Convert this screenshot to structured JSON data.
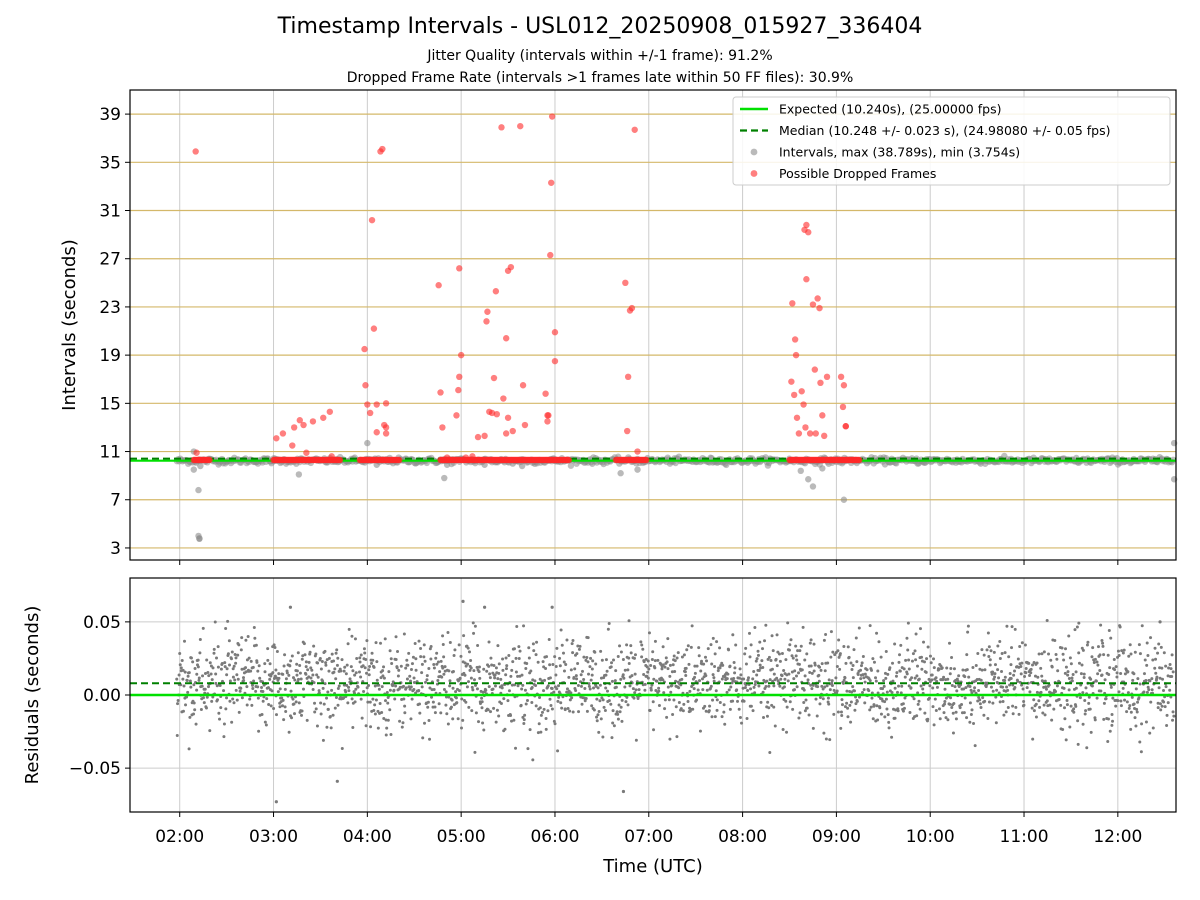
{
  "figure": {
    "title": "Timestamp Intervals - USL012_20250908_015927_336404",
    "subtitle_1": "Jitter Quality (intervals within +/-1 frame): 91.2%",
    "subtitle_2": "Dropped Frame Rate (intervals >1 frames late within 50 FF files): 30.9%"
  },
  "colors": {
    "expected": "#00e000",
    "median": "#008000",
    "intervals": "#8c8c8c",
    "dropped": "#ff2a2a",
    "hgrid": "#d4b86a",
    "vgrid": "#cccccc",
    "residuals": "#7a7a7a"
  },
  "chart_data": [
    {
      "type": "scatter",
      "title": "",
      "xlabel": "",
      "ylabel": "Intervals (seconds)",
      "xlim_hours": [
        1.47,
        12.62
      ],
      "ylim": [
        2.0,
        41.0
      ],
      "x_tick_labels": [
        "02:00",
        "03:00",
        "04:00",
        "05:00",
        "06:00",
        "07:00",
        "08:00",
        "09:00",
        "10:00",
        "11:00",
        "12:00"
      ],
      "x_tick_hours": [
        2,
        3,
        4,
        5,
        6,
        7,
        8,
        9,
        10,
        11,
        12
      ],
      "y_ticks": [
        3,
        7,
        11,
        15,
        19,
        23,
        27,
        31,
        35,
        39
      ],
      "grid": true,
      "legend_position": "top-right",
      "legend": [
        "Expected (10.240s), (25.00000 fps)",
        "Median (10.248 +/- 0.023 s), (24.98080 +/- 0.05 fps)",
        "Intervals, max (38.789s), min (3.754s)",
        "Possible Dropped Frames"
      ],
      "expected_interval": 10.24,
      "median_interval": 10.248,
      "dropped_band_hours": [
        [
          2.15,
          2.32
        ],
        [
          3.0,
          3.72
        ],
        [
          3.92,
          4.35
        ],
        [
          4.78,
          6.15
        ],
        [
          6.65,
          6.98
        ],
        [
          8.5,
          9.25
        ]
      ],
      "dropped_band_value": 10.3,
      "series": [
        {
          "name": "Possible Dropped Frames",
          "points": [
            [
              2.17,
              35.9
            ],
            [
              2.18,
              10.9
            ],
            [
              2.2,
              10.3
            ],
            [
              3.03,
              12.1
            ],
            [
              3.1,
              12.5
            ],
            [
              3.2,
              11.5
            ],
            [
              3.22,
              13.0
            ],
            [
              3.28,
              13.6
            ],
            [
              3.32,
              13.2
            ],
            [
              3.35,
              10.9
            ],
            [
              3.42,
              13.5
            ],
            [
              3.53,
              13.8
            ],
            [
              3.6,
              14.3
            ],
            [
              3.62,
              10.6
            ],
            [
              3.97,
              19.5
            ],
            [
              3.98,
              16.5
            ],
            [
              4.0,
              14.9
            ],
            [
              4.03,
              14.2
            ],
            [
              4.05,
              30.2
            ],
            [
              4.07,
              21.2
            ],
            [
              4.1,
              12.6
            ],
            [
              4.1,
              14.9
            ],
            [
              4.14,
              35.9
            ],
            [
              4.16,
              36.1
            ],
            [
              4.18,
              13.2
            ],
            [
              4.2,
              15.0
            ],
            [
              4.2,
              12.5
            ],
            [
              4.2,
              13.0
            ],
            [
              4.76,
              24.8
            ],
            [
              4.78,
              15.9
            ],
            [
              4.8,
              13.0
            ],
            [
              4.85,
              10.5
            ],
            [
              4.95,
              14.0
            ],
            [
              4.97,
              16.1
            ],
            [
              4.98,
              17.2
            ],
            [
              4.98,
              26.2
            ],
            [
              5.0,
              19.0
            ],
            [
              5.05,
              10.5
            ],
            [
              5.12,
              10.6
            ],
            [
              5.18,
              12.2
            ],
            [
              5.25,
              12.3
            ],
            [
              5.27,
              21.8
            ],
            [
              5.28,
              22.6
            ],
            [
              5.3,
              14.3
            ],
            [
              5.33,
              14.2
            ],
            [
              5.35,
              17.1
            ],
            [
              5.37,
              24.3
            ],
            [
              5.38,
              14.1
            ],
            [
              5.43,
              37.9
            ],
            [
              5.45,
              15.4
            ],
            [
              5.48,
              20.4
            ],
            [
              5.48,
              12.5
            ],
            [
              5.5,
              13.8
            ],
            [
              5.5,
              26.0
            ],
            [
              5.53,
              26.3
            ],
            [
              5.55,
              12.7
            ],
            [
              5.63,
              38.0
            ],
            [
              5.66,
              16.5
            ],
            [
              5.68,
              13.2
            ],
            [
              5.9,
              15.8
            ],
            [
              5.92,
              13.5
            ],
            [
              5.92,
              14.0
            ],
            [
              5.93,
              14.0
            ],
            [
              5.95,
              27.3
            ],
            [
              5.96,
              33.3
            ],
            [
              5.97,
              38.8
            ],
            [
              6.0,
              20.9
            ],
            [
              6.0,
              18.5
            ],
            [
              6.75,
              25.0
            ],
            [
              6.77,
              12.7
            ],
            [
              6.78,
              17.2
            ],
            [
              6.8,
              22.7
            ],
            [
              6.82,
              22.9
            ],
            [
              6.85,
              37.7
            ],
            [
              6.88,
              11.0
            ],
            [
              8.52,
              16.8
            ],
            [
              8.53,
              23.3
            ],
            [
              8.55,
              15.7
            ],
            [
              8.56,
              20.3
            ],
            [
              8.57,
              19.0
            ],
            [
              8.58,
              13.8
            ],
            [
              8.6,
              12.5
            ],
            [
              8.63,
              16.0
            ],
            [
              8.65,
              14.9
            ],
            [
              8.66,
              29.4
            ],
            [
              8.67,
              13.0
            ],
            [
              8.68,
              29.8
            ],
            [
              8.68,
              25.3
            ],
            [
              8.7,
              29.2
            ],
            [
              8.72,
              12.5
            ],
            [
              8.75,
              23.2
            ],
            [
              8.77,
              17.8
            ],
            [
              8.78,
              12.5
            ],
            [
              8.8,
              23.7
            ],
            [
              8.82,
              22.9
            ],
            [
              8.83,
              16.7
            ],
            [
              8.85,
              14.0
            ],
            [
              8.87,
              12.3
            ],
            [
              8.9,
              17.2
            ],
            [
              9.05,
              17.2
            ],
            [
              9.07,
              14.7
            ],
            [
              9.08,
              16.5
            ],
            [
              9.1,
              13.1
            ],
            [
              9.1,
              13.1
            ]
          ]
        },
        {
          "name": "Intervals, max (38.789s), min (3.754s)",
          "points": [
            [
              2.15,
              9.5
            ],
            [
              2.15,
              11.0
            ],
            [
              2.2,
              7.8
            ],
            [
              2.2,
              4.0
            ],
            [
              2.21,
              3.8
            ],
            [
              2.21,
              3.754
            ],
            [
              2.22,
              9.8
            ],
            [
              3.0,
              10.2
            ],
            [
              3.27,
              9.1
            ],
            [
              4.0,
              11.7
            ],
            [
              4.1,
              9.9
            ],
            [
              4.82,
              8.8
            ],
            [
              4.85,
              9.9
            ],
            [
              5.15,
              10.2
            ],
            [
              5.25,
              9.9
            ],
            [
              5.55,
              10.0
            ],
            [
              5.65,
              9.8
            ],
            [
              6.7,
              9.2
            ],
            [
              6.88,
              9.5
            ],
            [
              8.62,
              9.4
            ],
            [
              8.7,
              8.7
            ],
            [
              8.75,
              8.1
            ],
            [
              8.85,
              9.6
            ],
            [
              9.08,
              7.0
            ],
            [
              12.6,
              11.7
            ],
            [
              12.6,
              8.7
            ]
          ]
        }
      ]
    },
    {
      "type": "scatter",
      "title": "",
      "xlabel": "Time (UTC)",
      "ylabel": "Residuals (seconds)",
      "xlim_hours": [
        1.47,
        12.62
      ],
      "ylim": [
        -0.08,
        0.08
      ],
      "y_tick_labels": [
        "0.05",
        "0.00",
        "−0.05"
      ],
      "y_ticks": [
        0.05,
        0.0,
        -0.05
      ],
      "grid": true,
      "expected_residual": 0.0,
      "median_residual": 0.008,
      "residual_range": [
        -0.074,
        0.065
      ],
      "residual_spread_sd": 0.021,
      "residual_count_approx": 2400,
      "notable_points": [
        [
          3.03,
          -0.073
        ],
        [
          3.18,
          0.06
        ],
        [
          3.68,
          -0.059
        ],
        [
          5.02,
          0.064
        ],
        [
          5.25,
          0.06
        ],
        [
          5.97,
          0.06
        ],
        [
          6.73,
          -0.066
        ],
        [
          12.45,
          0.05
        ]
      ]
    }
  ]
}
